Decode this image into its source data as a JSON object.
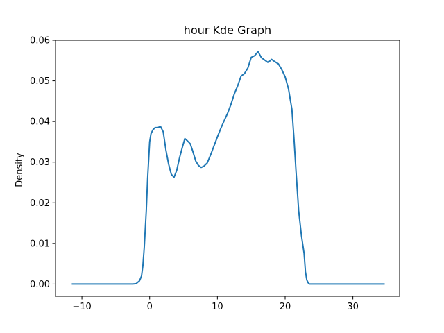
{
  "chart_data": {
    "type": "line",
    "title": "hour Kde Graph",
    "xlabel": "",
    "ylabel": "Density",
    "xlim": [
      -13.9,
      36.9
    ],
    "ylim": [
      -0.003,
      0.06
    ],
    "xticks": [
      -10,
      0,
      10,
      20,
      30
    ],
    "xtick_labels": [
      "−10",
      "0",
      "10",
      "20",
      "30"
    ],
    "yticks": [
      0.0,
      0.01,
      0.02,
      0.03,
      0.04,
      0.05,
      0.06
    ],
    "ytick_labels": [
      "0.00",
      "0.01",
      "0.02",
      "0.03",
      "0.04",
      "0.05",
      "0.06"
    ],
    "grid": false,
    "legend": "none",
    "colors": {
      "line": "#1f77b4",
      "axis": "#000000"
    },
    "series": [
      {
        "x": [
          -11.5,
          -2.5,
          -2.0,
          -1.5,
          -1.2,
          -1.0,
          -0.8,
          -0.5,
          -0.3,
          -0.1,
          0.0,
          0.2,
          0.5,
          0.8,
          1.2,
          1.6,
          2.0,
          2.4,
          2.8,
          3.2,
          3.6,
          4.0,
          4.4,
          4.8,
          5.2,
          5.6,
          6.0,
          6.4,
          6.8,
          7.2,
          7.6,
          8.0,
          8.5,
          9.0,
          9.5,
          10.0,
          10.5,
          11.0,
          11.5,
          12.0,
          12.5,
          13.0,
          13.5,
          14.0,
          14.5,
          15.0,
          15.5,
          16.0,
          16.5,
          17.0,
          17.5,
          18.0,
          18.5,
          19.0,
          19.5,
          20.0,
          20.5,
          21.0,
          21.3,
          21.6,
          22.0,
          22.4,
          22.8,
          23.0,
          23.2,
          23.4,
          23.6,
          23.8,
          24.0,
          24.3,
          24.6,
          25.0,
          26.0,
          34.7
        ],
        "y": [
          0.0,
          0.0,
          0.0001,
          0.0008,
          0.002,
          0.0045,
          0.009,
          0.018,
          0.026,
          0.032,
          0.035,
          0.037,
          0.038,
          0.0385,
          0.0385,
          0.0388,
          0.0375,
          0.033,
          0.0295,
          0.027,
          0.0263,
          0.028,
          0.031,
          0.0335,
          0.0358,
          0.0352,
          0.0345,
          0.0325,
          0.0303,
          0.0292,
          0.0287,
          0.029,
          0.0298,
          0.0318,
          0.034,
          0.0362,
          0.0383,
          0.0402,
          0.042,
          0.0442,
          0.0468,
          0.0488,
          0.0512,
          0.0518,
          0.0532,
          0.0558,
          0.0562,
          0.0572,
          0.0557,
          0.0551,
          0.0545,
          0.0553,
          0.0547,
          0.0542,
          0.0528,
          0.051,
          0.048,
          0.043,
          0.036,
          0.028,
          0.018,
          0.012,
          0.0075,
          0.003,
          0.001,
          0.0003,
          0.0,
          0.0,
          0.0,
          0.0,
          0.0,
          0.0,
          0.0,
          0.0
        ]
      }
    ]
  }
}
